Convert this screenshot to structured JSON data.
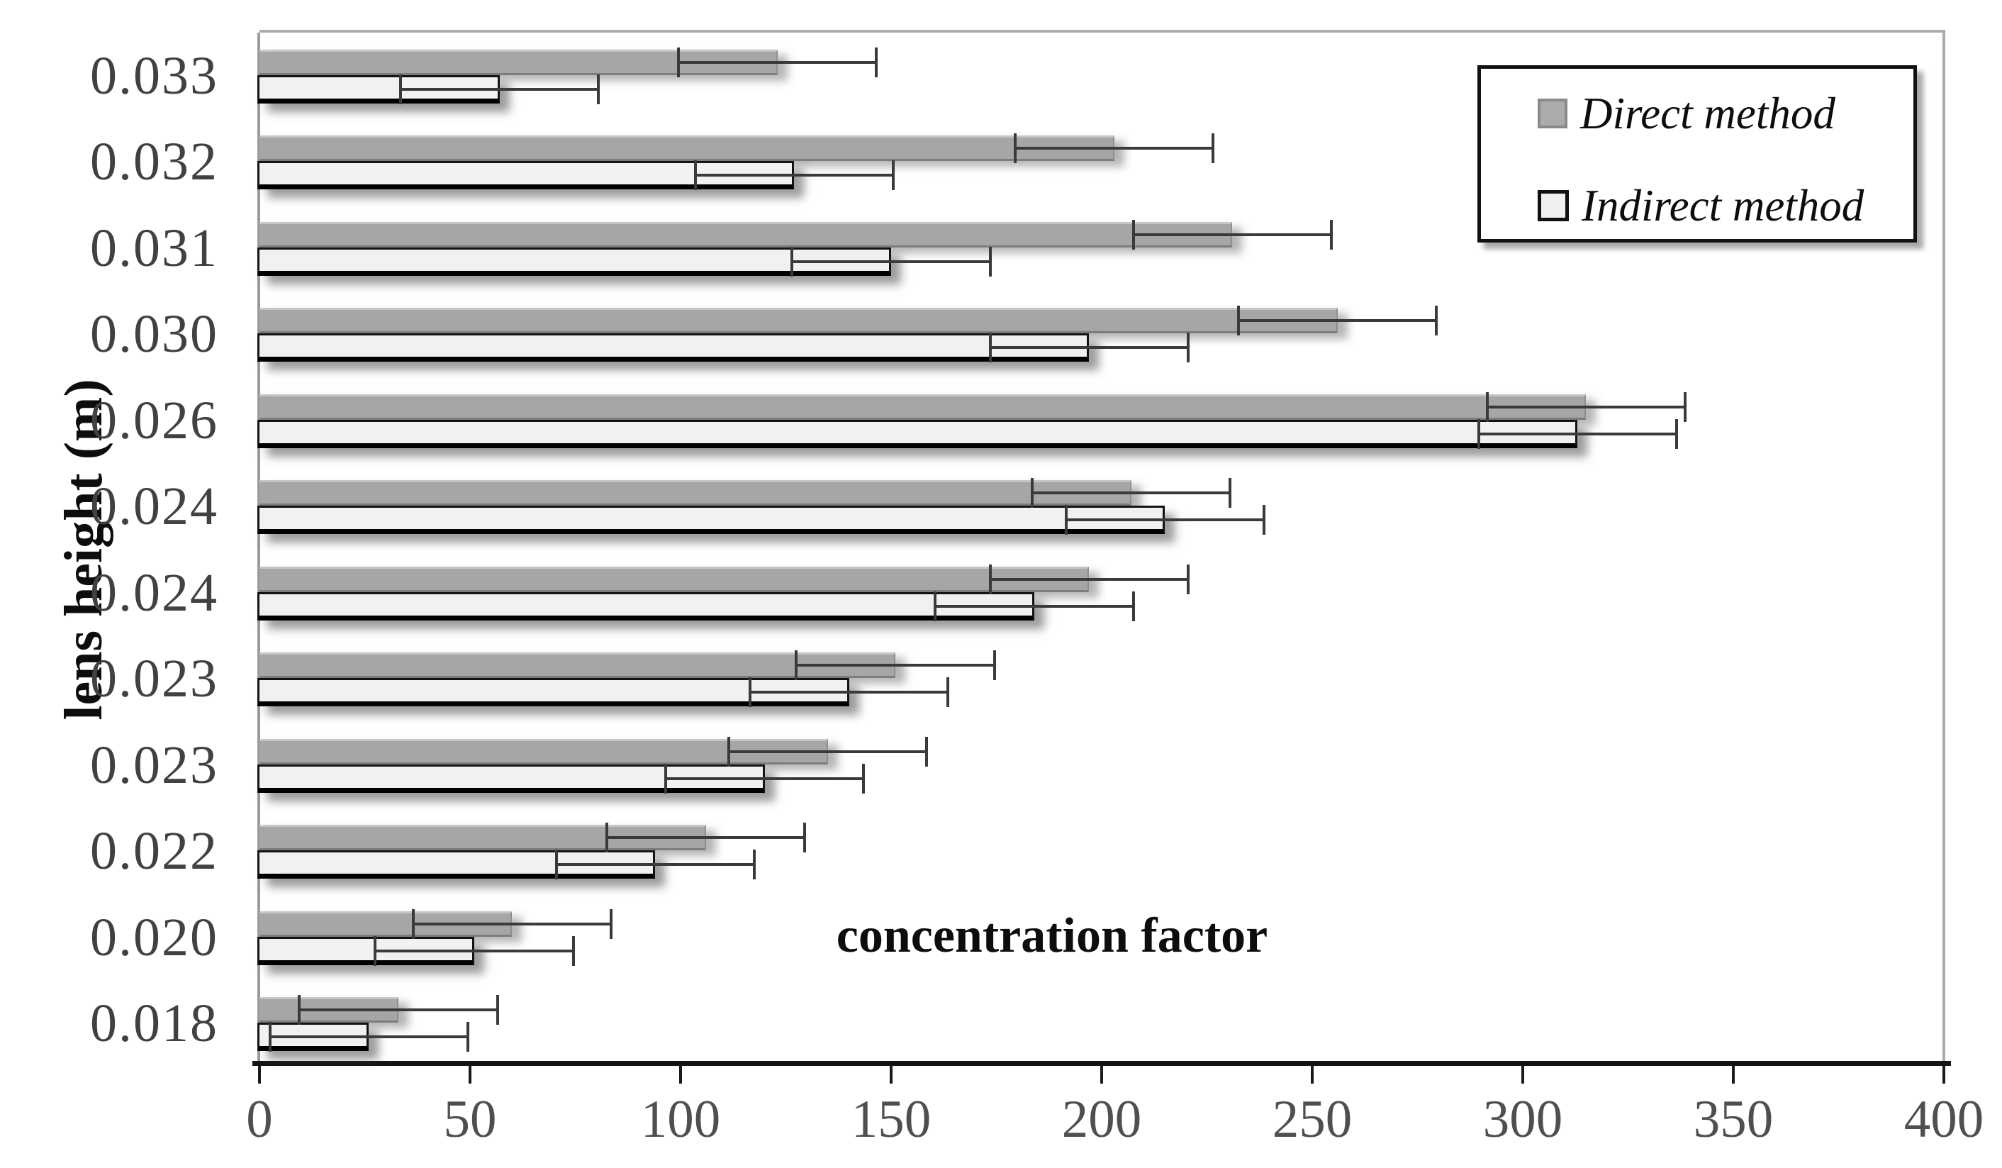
{
  "chart_data": {
    "type": "bar",
    "orientation": "horizontal",
    "title": "",
    "xlabel": "concentration factor",
    "ylabel": "lens height (m)",
    "categories": [
      "0.033",
      "0.032",
      "0.031",
      "0.030",
      "0.026",
      "0.024",
      "0.024",
      "0.023",
      "0.023",
      "0.022",
      "0.020",
      "0.018"
    ],
    "series": [
      {
        "name": "Direct method",
        "color": "#a6a6a6",
        "values": [
          123,
          203,
          231,
          256,
          315,
          207,
          197,
          151,
          135,
          106,
          60,
          33
        ],
        "error_plus_minus": 23.5
      },
      {
        "name": "Indirect method",
        "color": "#f1f1f1",
        "values": [
          57,
          127,
          150,
          197,
          313,
          215,
          184,
          140,
          120,
          94,
          51,
          26
        ],
        "error_plus_minus": 23.5
      }
    ],
    "xlim": [
      0,
      400
    ],
    "xticks": [
      0,
      50,
      100,
      150,
      200,
      250,
      300,
      350,
      400
    ],
    "grid": "off",
    "legend_position": "top-right",
    "error_bar_color": "#3a3a3a",
    "axis_color": "#141414",
    "tick_label_color": "#4f4f4f"
  }
}
